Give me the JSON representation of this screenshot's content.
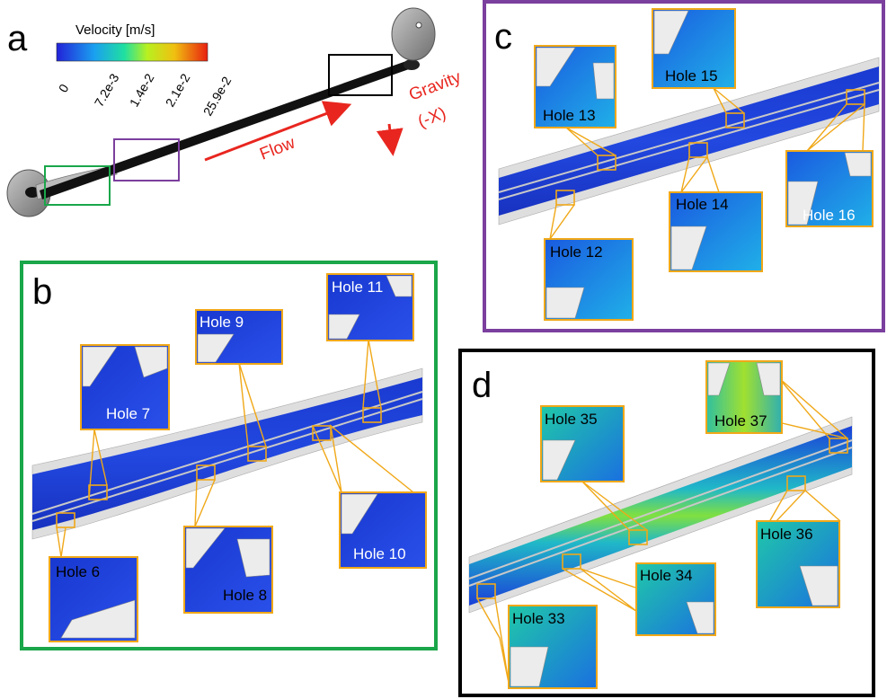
{
  "panels": {
    "a": {
      "letter": "a"
    },
    "b": {
      "letter": "b"
    },
    "c": {
      "letter": "c"
    },
    "d": {
      "letter": "d"
    }
  },
  "legend": {
    "title": "Velocity [m/s]",
    "ticks": [
      "0",
      "7.2e-3",
      "1.4e-2",
      "2.1e-2",
      "25.9e-2"
    ]
  },
  "annotations": {
    "flow": "Flow",
    "gravity_line1": "Gravity",
    "gravity_line2": "(-X)"
  },
  "holes": {
    "h6": "Hole 6",
    "h7": "Hole 7",
    "h8": "Hole 8",
    "h9": "Hole 9",
    "h10": "Hole 10",
    "h11": "Hole 11",
    "h12": "Hole 12",
    "h13": "Hole 13",
    "h14": "Hole 14",
    "h15": "Hole 15",
    "h16": "Hole 16",
    "h33": "Hole 33",
    "h34": "Hole 34",
    "h35": "Hole 35",
    "h36": "Hole 36",
    "h37": "Hole 37"
  },
  "colors": {
    "panel_b_border": "#1aa64a",
    "panel_c_border": "#7b3f9e",
    "panel_d_border": "#000000",
    "callout": "#f0a818",
    "annotation": "#e8261f"
  }
}
